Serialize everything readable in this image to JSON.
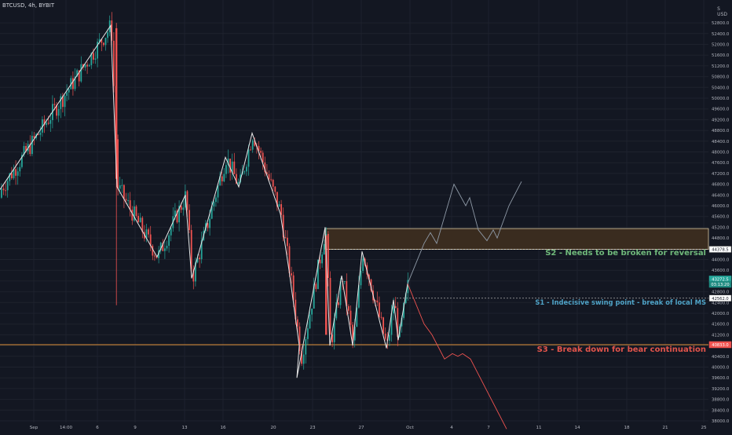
{
  "header": {
    "symbol": "BTCUSD, 4h, BYBIT",
    "currency": "USD",
    "scale_mode": "S"
  },
  "annotations": {
    "s1": "S1 - Indecisive swing point - break of local MS",
    "s2": "S2 - Needs to be broken for reversal",
    "s3": "S3 - Break down for bear continuation"
  },
  "colors": {
    "background": "#131722",
    "bull": "#26a69a",
    "bear": "#ef5350",
    "wave": "#e8e8e8",
    "projection_up": "#8f9aa7",
    "projection_down": "#ef5350",
    "zone_fill": "#3a2c1f",
    "s1_text": "#4fa3c7",
    "s2_text": "#6fb87a",
    "s3_text": "#e2544b",
    "s3_line": "#e0913a"
  },
  "chart_data": {
    "type": "candlestick",
    "title": "BTCUSD, 4h, BYBIT",
    "ylim": [
      37600,
      53000
    ],
    "yticks": [
      38000,
      38400,
      38800,
      39200,
      39600,
      40000,
      40400,
      40800,
      41200,
      41600,
      42000,
      42400,
      42800,
      43200,
      43600,
      44000,
      44400,
      44800,
      45200,
      45600,
      46000,
      46400,
      46800,
      47200,
      47600,
      48000,
      48400,
      48800,
      49200,
      49600,
      50000,
      50400,
      50800,
      51200,
      51600,
      52000,
      52400,
      52800
    ],
    "x_ticks": [
      "Sep",
      "14:00",
      "6",
      "9",
      "13",
      "16",
      "20",
      "23",
      "27",
      "Oct",
      "4",
      "7",
      "11",
      "14",
      "18",
      "21",
      "25"
    ],
    "price_labels": [
      {
        "label": "44378.5",
        "value": 44378.5
      },
      {
        "label": "43272.5",
        "value": 43272.5
      },
      {
        "label": "03:13:20",
        "value": 43080
      },
      {
        "label": "42562.0",
        "value": 42562
      },
      {
        "label": "40833.0",
        "value": 40833
      }
    ],
    "levels": [
      {
        "name": "S1",
        "value": 42562
      },
      {
        "name": "S2",
        "value": 44378.5
      },
      {
        "name": "S3",
        "value": 40833
      }
    ],
    "zone": {
      "from": 44378.5,
      "to": 45150
    },
    "wave_path": [
      46600,
      52700,
      46700,
      44100,
      46400,
      43300,
      47800,
      46700,
      48700,
      45700,
      43600,
      40800,
      39600,
      45200,
      40800,
      43400,
      40800,
      44300,
      40700,
      42500,
      41000,
      43100
    ],
    "projection_up": [
      43100,
      44600,
      45000,
      44600,
      46800,
      46000,
      46300,
      45100,
      44700,
      45100,
      44800,
      46000,
      46900
    ],
    "projection_down": [
      43100,
      41600,
      41200,
      40300,
      40500,
      40400,
      40500,
      40300,
      37700
    ]
  }
}
